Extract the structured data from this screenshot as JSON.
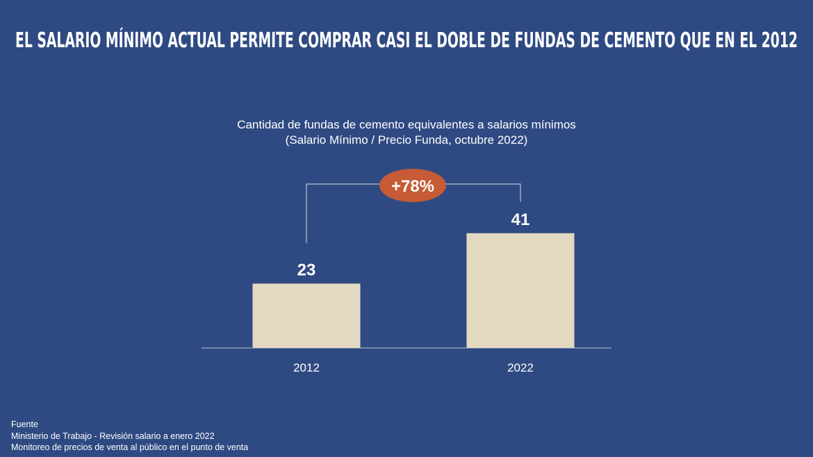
{
  "title": "EL SALARIO MÍNIMO ACTUAL PERMITE COMPRAR CASI EL DOBLE DE FUNDAS DE CEMENTO QUE EN EL 2012",
  "colors": {
    "background": "#2f4a82",
    "bar": "#e3d9c1",
    "badge": "#c65b35",
    "text": "#ffffff"
  },
  "chart_data": {
    "type": "bar",
    "title": "Cantidad de fundas de cemento equivalentes a salarios mínimos",
    "subtitle": "(Salario Mínimo / Precio Funda, octubre 2022)",
    "categories": [
      "2012",
      "2022"
    ],
    "values": [
      23,
      41
    ],
    "value_labels": [
      "23",
      "41"
    ],
    "annotation": "+78%",
    "xlabel": "",
    "ylabel": "",
    "ylim": [
      0,
      45
    ],
    "grid": false
  },
  "source": {
    "heading": "Fuente",
    "lines": [
      "Ministerio de Trabajo - Revisión salario a enero 2022",
      "Monitoreo de precios de venta al público en el punto de venta"
    ]
  }
}
